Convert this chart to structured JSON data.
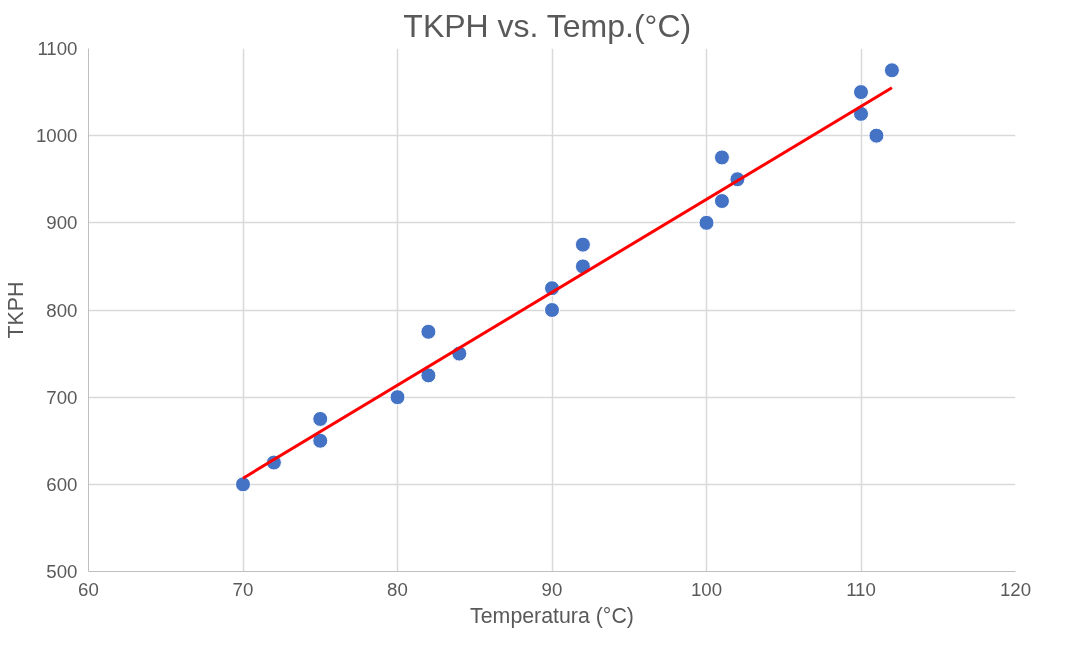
{
  "chart_data": {
    "type": "scatter",
    "title": "TKPH  vs. Temp.(°C)",
    "xlabel": "Temperatura (°C)",
    "ylabel": "TKPH",
    "series": [
      {
        "marker": "circle",
        "color": "#4472c4",
        "x": [
          70,
          72,
          75,
          75,
          80,
          82,
          82,
          84,
          90,
          90,
          92,
          92,
          100,
          101,
          101,
          102,
          110,
          110,
          111,
          112
        ],
        "values": [
          600,
          625,
          675,
          650,
          700,
          775,
          725,
          750,
          825,
          800,
          875,
          850,
          900,
          975,
          925,
          950,
          1050,
          1025,
          1000,
          1075
        ]
      },
      {
        "type": "line",
        "color": "#ff0000",
        "x": [
          70,
          112
        ],
        "values": [
          607,
          1055
        ]
      }
    ],
    "xlim": [
      60,
      120
    ],
    "xticks": [
      60,
      70,
      80,
      90,
      100,
      110,
      120
    ],
    "ylim": [
      500,
      1100
    ],
    "yticks": [
      500,
      600,
      700,
      800,
      900,
      1000,
      1100
    ],
    "grid": true
  }
}
